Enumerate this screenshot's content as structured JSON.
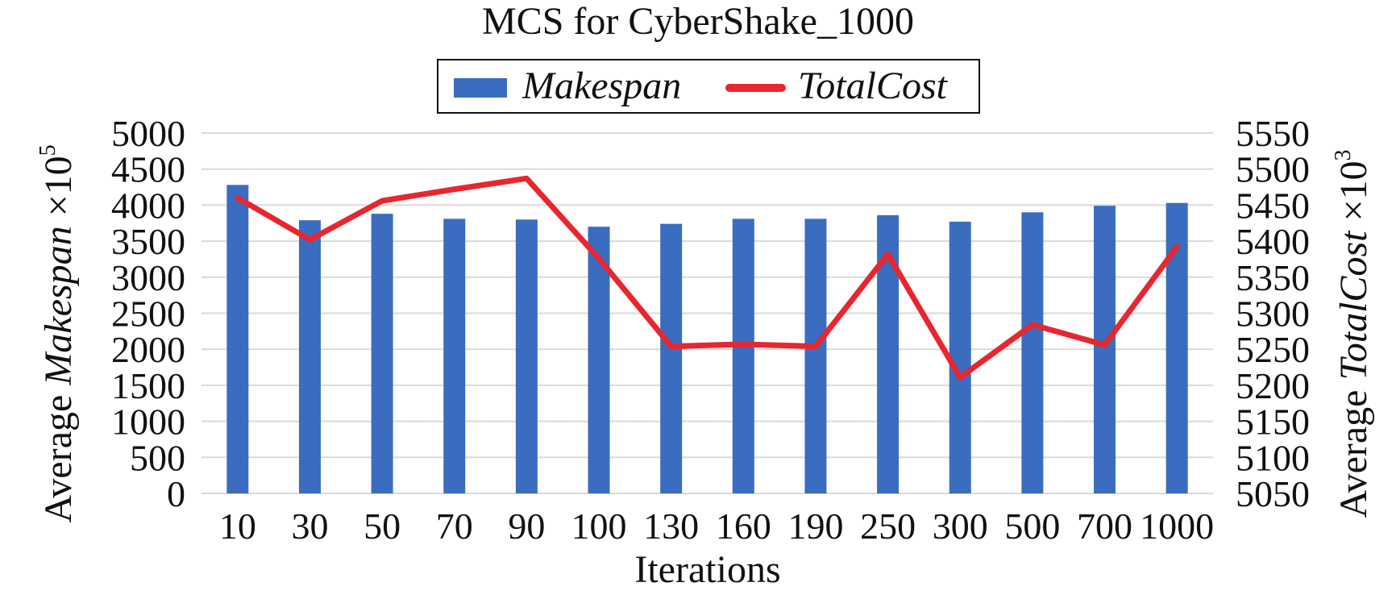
{
  "chart_data": {
    "type": "bar",
    "title": "MCS for CyberShake_1000",
    "xlabel": "Iterations",
    "ylabel_left": {
      "prefix": "Average ",
      "italic": "Makespan",
      "suffix": " ×10",
      "sup": "5"
    },
    "ylabel_right": {
      "prefix": "Average ",
      "italic": "TotalCost",
      "suffix": " ×10",
      "sup": "3"
    },
    "categories": [
      "10",
      "30",
      "50",
      "70",
      "90",
      "100",
      "130",
      "160",
      "190",
      "250",
      "300",
      "500",
      "700",
      "1000"
    ],
    "series": [
      {
        "name": "Makespan",
        "type": "bar",
        "axis": "left",
        "color": "#3a6dbf",
        "values": [
          4280,
          3790,
          3880,
          3810,
          3800,
          3700,
          3740,
          3810,
          3810,
          3860,
          3770,
          3900,
          3990,
          4030
        ]
      },
      {
        "name": "TotalCost",
        "type": "line",
        "axis": "right",
        "color": "#e8262f",
        "values": [
          5460,
          5402,
          5456,
          5472,
          5487,
          5376,
          5254,
          5257,
          5254,
          5382,
          5211,
          5284,
          5256,
          5392
        ]
      }
    ],
    "y_left": {
      "min": 0,
      "max": 5000,
      "step": 500
    },
    "y_right": {
      "min": 5050,
      "max": 5550,
      "step": 50
    },
    "grid": true,
    "legend_position": "top-center"
  }
}
